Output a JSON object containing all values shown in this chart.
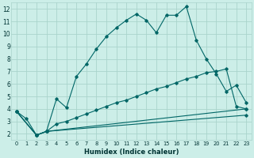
{
  "xlabel": "Humidex (Indice chaleur)",
  "bg_color": "#cceee8",
  "grid_color": "#aad4cc",
  "line_color": "#006666",
  "xlim": [
    -0.5,
    23.5
  ],
  "ylim": [
    1.5,
    12.5
  ],
  "xticks": [
    0,
    1,
    2,
    3,
    4,
    5,
    6,
    7,
    8,
    9,
    10,
    11,
    12,
    13,
    14,
    15,
    16,
    17,
    18,
    19,
    20,
    21,
    22,
    23
  ],
  "yticks": [
    2,
    3,
    4,
    5,
    6,
    7,
    8,
    9,
    10,
    11,
    12
  ],
  "line1_x": [
    0,
    1,
    2,
    3,
    4,
    5,
    6,
    7,
    8,
    9,
    10,
    11,
    12,
    13,
    14,
    15,
    16,
    17,
    18,
    19,
    20,
    21,
    22,
    23
  ],
  "line1_y": [
    3.8,
    3.2,
    1.9,
    2.2,
    4.8,
    4.1,
    6.6,
    7.6,
    8.8,
    9.8,
    10.5,
    11.1,
    11.6,
    11.1,
    10.1,
    11.5,
    11.5,
    12.2,
    9.5,
    8.0,
    6.8,
    5.4,
    5.9,
    4.5
  ],
  "line2_x": [
    0,
    2,
    3,
    4,
    5,
    6,
    7,
    8,
    9,
    10,
    11,
    12,
    13,
    14,
    15,
    16,
    17,
    18,
    19,
    20,
    21,
    22,
    23
  ],
  "line2_y": [
    3.8,
    1.9,
    2.2,
    2.8,
    3.0,
    3.3,
    3.6,
    3.9,
    4.2,
    4.5,
    4.7,
    5.0,
    5.3,
    5.6,
    5.8,
    6.1,
    6.4,
    6.6,
    6.9,
    7.0,
    7.2,
    4.2,
    4.0
  ],
  "line3_x": [
    0,
    2,
    3,
    23
  ],
  "line3_y": [
    3.8,
    1.9,
    2.2,
    4.0
  ],
  "line4_x": [
    0,
    2,
    3,
    23
  ],
  "line4_y": [
    3.8,
    1.9,
    2.2,
    3.5
  ]
}
